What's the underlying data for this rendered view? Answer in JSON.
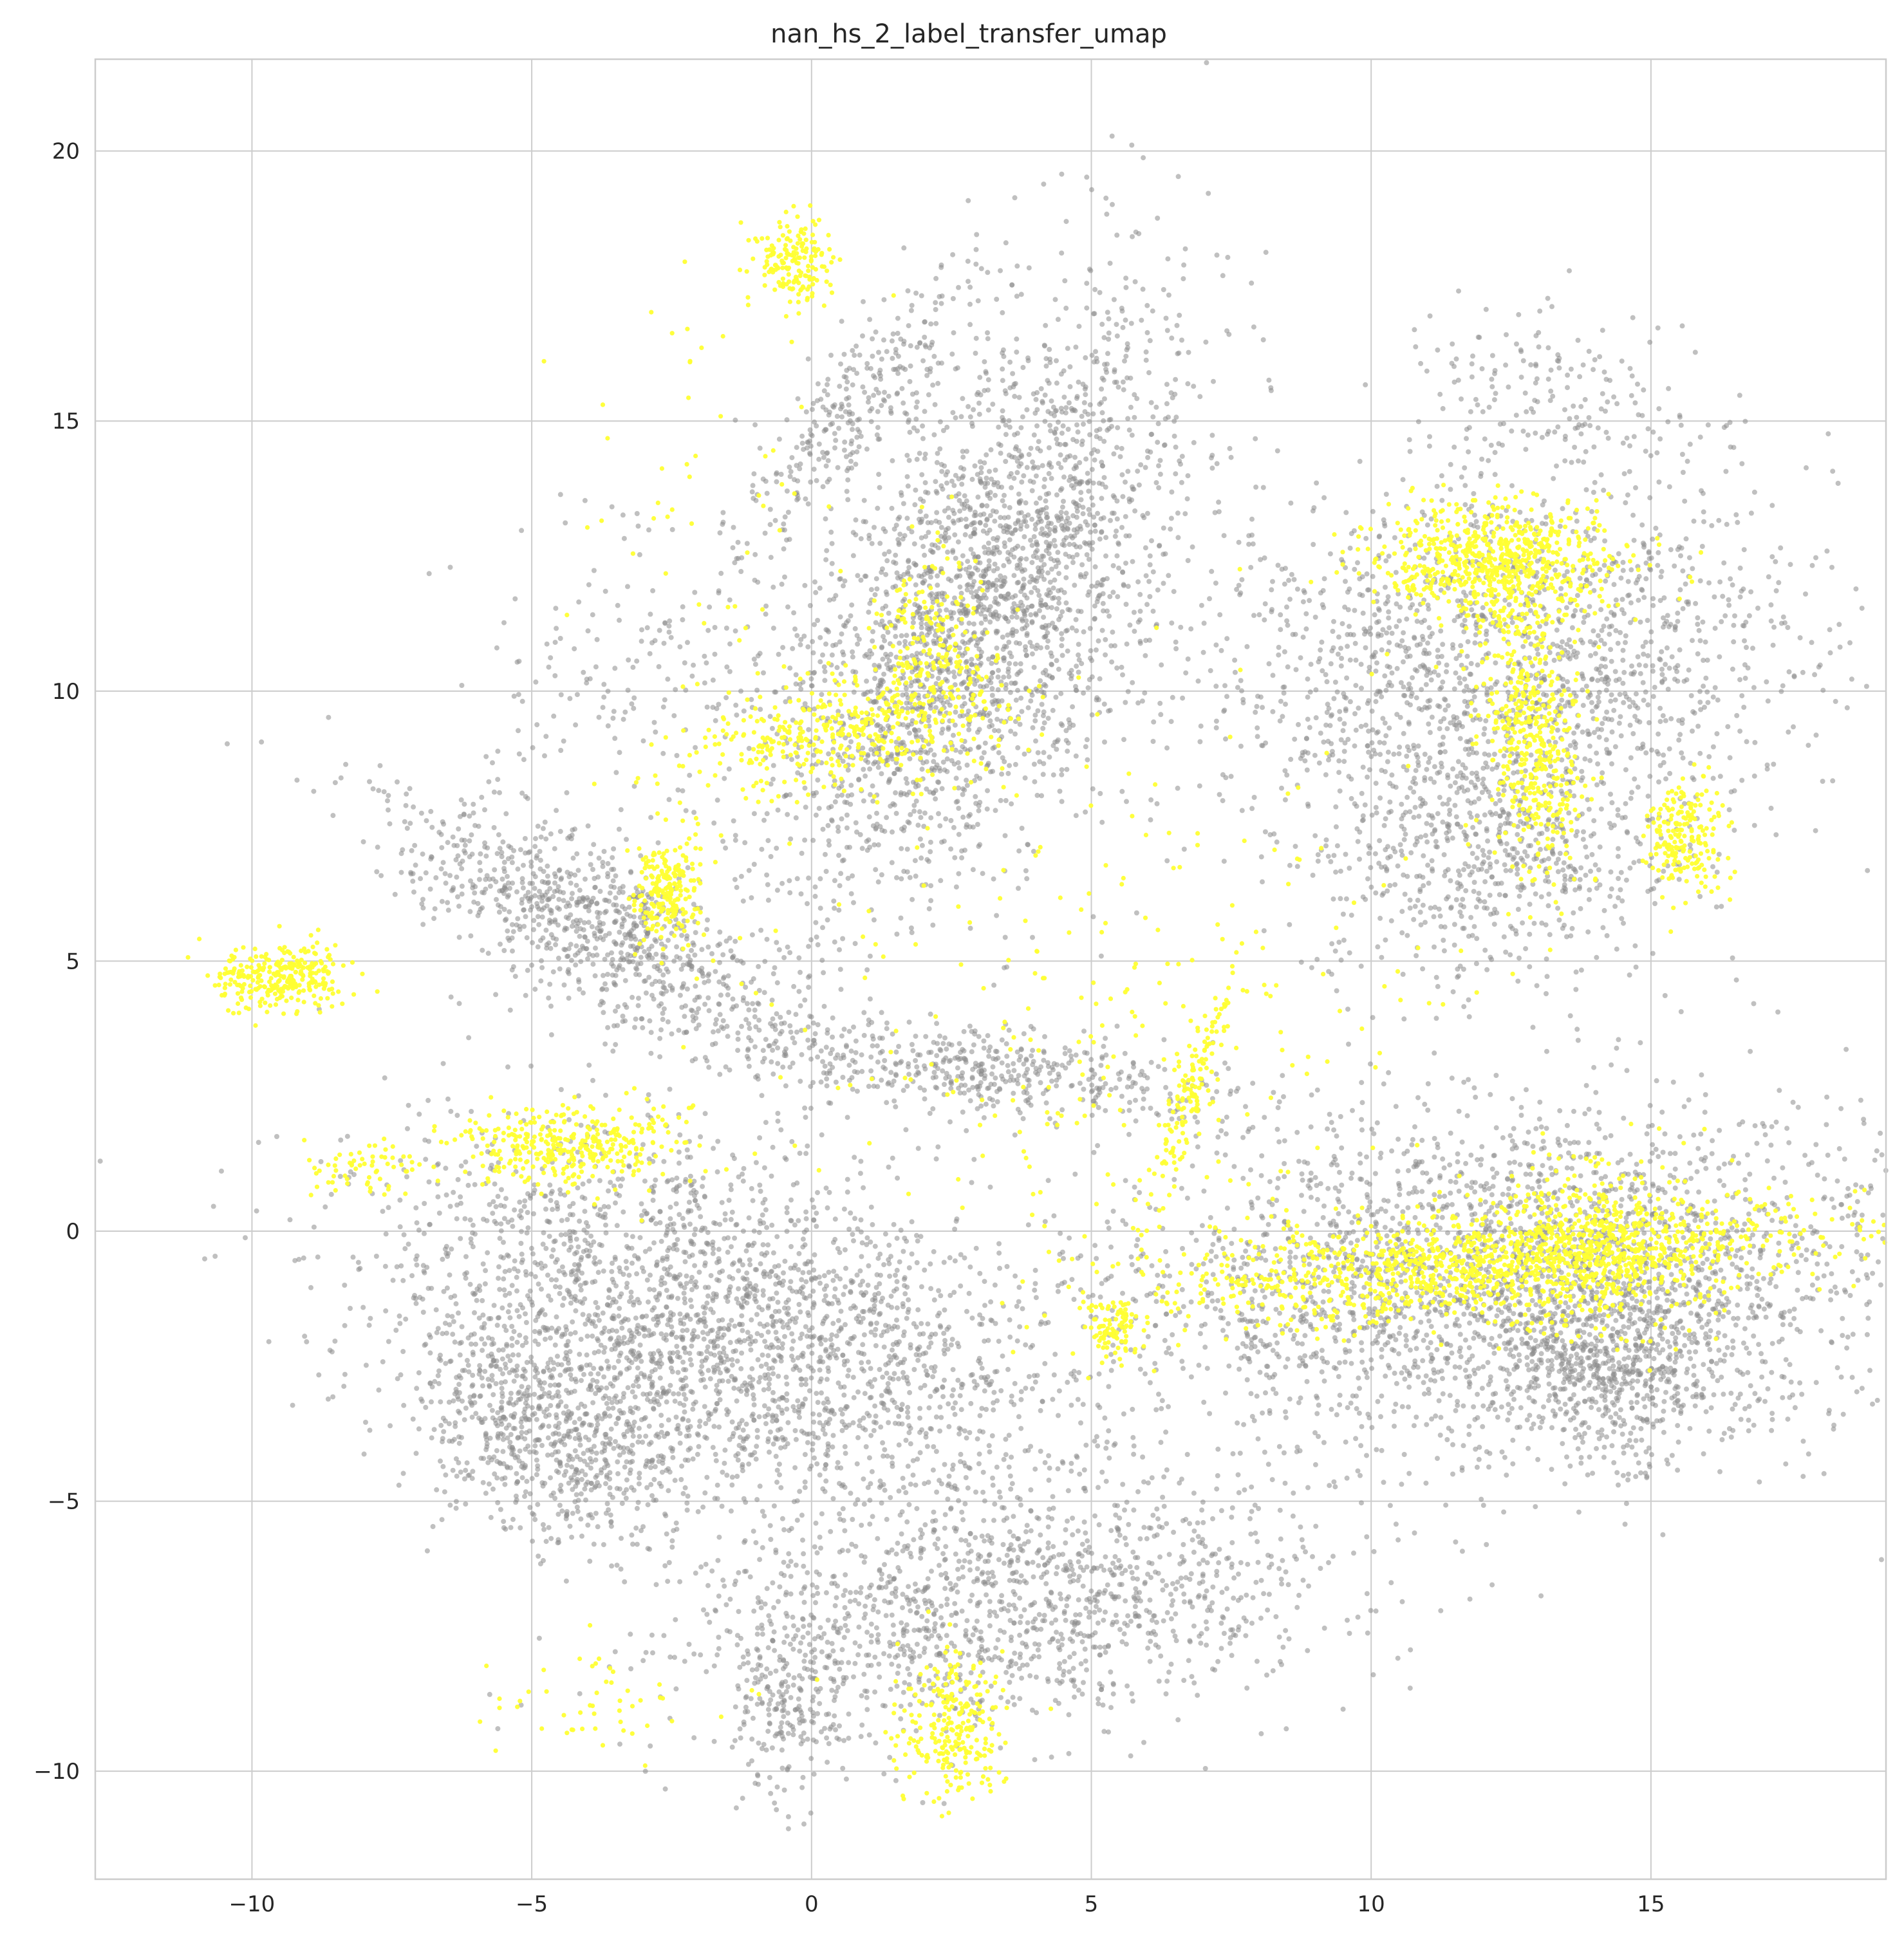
{
  "chart_data": {
    "type": "scatter",
    "title": "nan_hs_2_label_transfer_umap",
    "xlabel": "",
    "ylabel": "",
    "xlim": [
      -12.8,
      19.2
    ],
    "ylim": [
      -12.0,
      21.7
    ],
    "xticks": [
      -10,
      -5,
      0,
      5,
      10,
      15
    ],
    "xtick_labels": [
      "−10",
      "−5",
      "0",
      "5",
      "10",
      "15"
    ],
    "yticks": [
      -10,
      -5,
      0,
      5,
      10,
      15,
      20
    ],
    "ytick_labels": [
      "−10",
      "−5",
      "0",
      "5",
      "10",
      "15",
      "20"
    ],
    "grid": true,
    "legend": "none",
    "point_clusters": [
      {
        "group": "background",
        "color": "#8c8c8c",
        "cx": 3.0,
        "cy": 11.5,
        "sx": 1.4,
        "sy": 3.0,
        "rot": -0.45,
        "n": 2600
      },
      {
        "group": "background",
        "color": "#8c8c8c",
        "cx": 12.5,
        "cy": 10.5,
        "sx": 3.0,
        "sy": 1.6,
        "rot": 0.05,
        "n": 1500
      },
      {
        "group": "background",
        "color": "#8c8c8c",
        "cx": 12.2,
        "cy": 7.2,
        "sx": 1.6,
        "sy": 1.3,
        "rot": 0.0,
        "n": 700
      },
      {
        "group": "background",
        "color": "#8c8c8c",
        "cx": 12.5,
        "cy": -0.8,
        "sx": 3.5,
        "sy": 1.6,
        "rot": 0.05,
        "n": 2600
      },
      {
        "group": "background",
        "color": "#8c8c8c",
        "cx": 14.3,
        "cy": -2.5,
        "sx": 1.2,
        "sy": 0.9,
        "rot": 0.0,
        "n": 600
      },
      {
        "group": "background",
        "color": "#8c8c8c",
        "cx": -1.5,
        "cy": -1.8,
        "sx": 3.2,
        "sy": 1.6,
        "rot": -0.3,
        "n": 2600
      },
      {
        "group": "background",
        "color": "#8c8c8c",
        "cx": -4.6,
        "cy": -3.8,
        "sx": 1.3,
        "sy": 0.9,
        "rot": -0.4,
        "n": 700
      },
      {
        "group": "background",
        "color": "#8c8c8c",
        "cx": -3.8,
        "cy": 5.6,
        "sx": 2.2,
        "sy": 0.7,
        "rot": -0.5,
        "n": 900
      },
      {
        "group": "background",
        "color": "#8c8c8c",
        "cx": 3.5,
        "cy": -7.0,
        "sx": 3.0,
        "sy": 1.1,
        "rot": 0.12,
        "n": 1300
      },
      {
        "group": "background",
        "color": "#8c8c8c",
        "cx": 3.0,
        "cy": 3.0,
        "sx": 2.4,
        "sy": 0.4,
        "rot": -0.12,
        "n": 500
      },
      {
        "group": "background",
        "color": "#8c8c8c",
        "cx": 0.8,
        "cy": 15.3,
        "sx": 1.6,
        "sy": 0.45,
        "rot": 0.9,
        "n": 280
      },
      {
        "group": "background",
        "color": "#8c8c8c",
        "cx": 13.5,
        "cy": 15.2,
        "sx": 1.4,
        "sy": 0.9,
        "rot": -0.3,
        "n": 200
      },
      {
        "group": "background",
        "color": "#8c8c8c",
        "cx": -0.4,
        "cy": -8.8,
        "sx": 0.5,
        "sy": 0.9,
        "rot": 0.0,
        "n": 200
      },
      {
        "group": "background",
        "color": "#8c8c8c",
        "cx": -3.2,
        "cy": 10.2,
        "sx": 1.6,
        "sy": 1.4,
        "rot": 0.0,
        "n": 180
      },
      {
        "group": "labeled",
        "color": "#ffff33",
        "cx": 0.8,
        "cy": 9.3,
        "sx": 1.5,
        "sy": 0.55,
        "rot": 0.2,
        "n": 420
      },
      {
        "group": "labeled",
        "color": "#ffff33",
        "cx": 2.2,
        "cy": 11.0,
        "sx": 0.5,
        "sy": 0.9,
        "rot": 0.0,
        "n": 160
      },
      {
        "group": "labeled",
        "color": "#ffff33",
        "cx": -0.3,
        "cy": 17.9,
        "sx": 0.35,
        "sy": 0.45,
        "rot": 0.0,
        "n": 170
      },
      {
        "group": "labeled",
        "color": "#ffff33",
        "cx": -2.6,
        "cy": 6.3,
        "sx": 0.3,
        "sy": 0.45,
        "rot": 0.0,
        "n": 220
      },
      {
        "group": "labeled",
        "color": "#ffff33",
        "cx": -9.5,
        "cy": 4.7,
        "sx": 0.6,
        "sy": 0.3,
        "rot": 0.0,
        "n": 300
      },
      {
        "group": "labeled",
        "color": "#ffff33",
        "cx": -4.3,
        "cy": 1.6,
        "sx": 1.1,
        "sy": 0.35,
        "rot": 0.05,
        "n": 350
      },
      {
        "group": "labeled",
        "color": "#ffff33",
        "cx": 12.2,
        "cy": 12.4,
        "sx": 1.1,
        "sy": 0.55,
        "rot": 0.0,
        "n": 700
      },
      {
        "group": "labeled",
        "color": "#ffff33",
        "cx": 12.9,
        "cy": 9.2,
        "sx": 0.45,
        "sy": 1.3,
        "rot": 0.1,
        "n": 450
      },
      {
        "group": "labeled",
        "color": "#ffff33",
        "cx": 15.6,
        "cy": 7.3,
        "sx": 0.35,
        "sy": 0.55,
        "rot": 0.0,
        "n": 200
      },
      {
        "group": "labeled",
        "color": "#ffff33",
        "cx": 12.0,
        "cy": -0.6,
        "sx": 3.0,
        "sy": 0.5,
        "rot": 0.08,
        "n": 1200
      },
      {
        "group": "labeled",
        "color": "#ffff33",
        "cx": 14.0,
        "cy": -0.2,
        "sx": 0.9,
        "sy": 0.8,
        "rot": 0.0,
        "n": 400
      },
      {
        "group": "labeled",
        "color": "#ffff33",
        "cx": 6.8,
        "cy": 2.6,
        "sx": 0.15,
        "sy": 1.1,
        "rot": -0.3,
        "n": 140
      },
      {
        "group": "labeled",
        "color": "#ffff33",
        "cx": 2.5,
        "cy": -9.2,
        "sx": 0.5,
        "sy": 0.7,
        "rot": 0.0,
        "n": 250
      },
      {
        "group": "labeled",
        "color": "#ffff33",
        "cx": 5.4,
        "cy": -1.8,
        "sx": 0.25,
        "sy": 0.3,
        "rot": 0.0,
        "n": 90
      },
      {
        "group": "labeled",
        "color": "#ffff33",
        "cx": -8.0,
        "cy": 1.1,
        "sx": 0.5,
        "sy": 0.25,
        "rot": 0.0,
        "n": 60
      },
      {
        "group": "labeled",
        "color": "#ffff33",
        "cx": -3.8,
        "cy": -8.6,
        "sx": 1.2,
        "sy": 0.5,
        "rot": 0.0,
        "n": 50
      },
      {
        "group": "labeled",
        "color": "#ffff33",
        "cx": 5.5,
        "cy": 4.0,
        "sx": 3.5,
        "sy": 2.5,
        "rot": 0.0,
        "n": 260
      },
      {
        "group": "labeled",
        "color": "#ffff33",
        "cx": -1.5,
        "cy": 13.5,
        "sx": 1.2,
        "sy": 2.5,
        "rot": 0.0,
        "n": 60
      }
    ]
  }
}
